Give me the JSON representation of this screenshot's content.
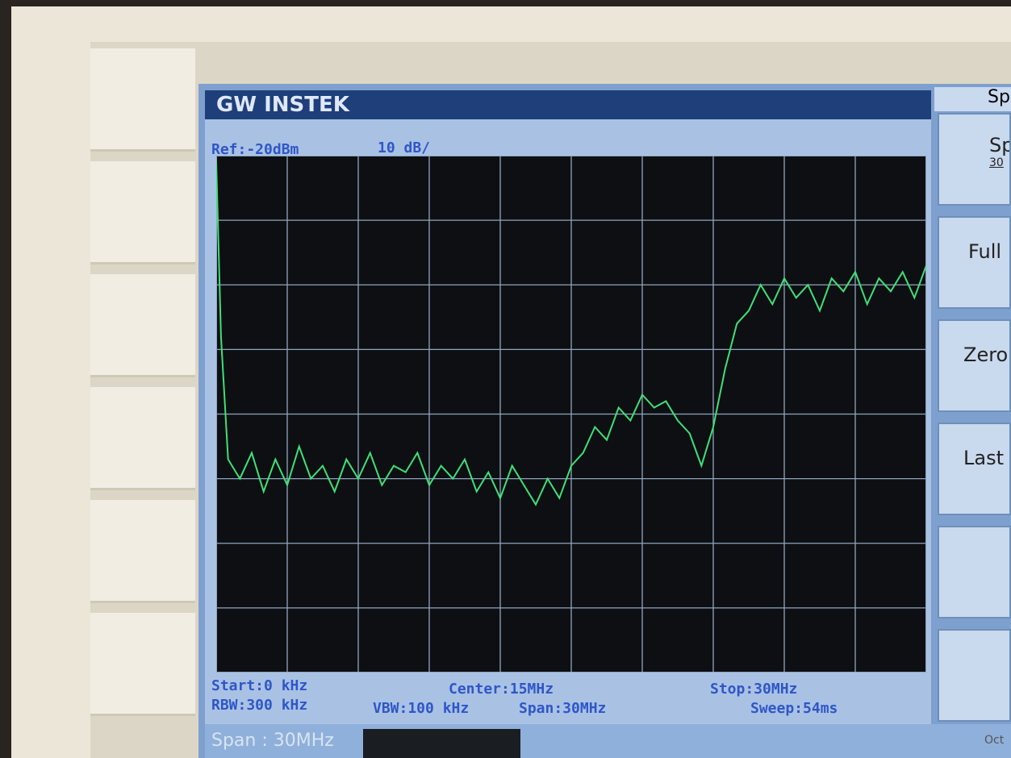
{
  "header": {
    "brand": "GW INSTEK",
    "ref": "Ref:-20dBm",
    "scale": "10 dB/"
  },
  "status": {
    "start": "Start:0 kHz",
    "rbw": "RBW:300 kHz",
    "center": "Center:15MHz",
    "vbw": "VBW:100 kHz",
    "span": "Span:30MHz",
    "stop": "Stop:30MHz",
    "sweep": "Sweep:54ms"
  },
  "softkeys": {
    "menu": "Sp",
    "items": [
      {
        "label": "Sp",
        "value": "30"
      },
      {
        "label": "Full"
      },
      {
        "label": "Zero"
      },
      {
        "label": "Last"
      }
    ]
  },
  "footer": {
    "input": "Span : 30MHz",
    "date": "Oct"
  },
  "chart_data": {
    "type": "line",
    "x": [
      0,
      0.2,
      0.5,
      1,
      1.5,
      2,
      2.5,
      3,
      3.5,
      4,
      4.5,
      5,
      5.5,
      6,
      6.5,
      7,
      7.5,
      8,
      8.5,
      9,
      9.5,
      10,
      10.5,
      11,
      11.5,
      12,
      12.5,
      13,
      13.5,
      14,
      14.5,
      15,
      15.5,
      16,
      16.5,
      17,
      17.5,
      18,
      18.5,
      19,
      19.5,
      20,
      20.5,
      21,
      21.5,
      22,
      22.5,
      23,
      23.5,
      24,
      24.5,
      25,
      25.5,
      26,
      26.5,
      27,
      27.5,
      28,
      28.5,
      29,
      29.5,
      30
    ],
    "values": [
      -21,
      -48,
      -67,
      -70,
      -66,
      -72,
      -67,
      -71,
      -65,
      -70,
      -68,
      -72,
      -67,
      -70,
      -66,
      -71,
      -68,
      -69,
      -66,
      -71,
      -68,
      -70,
      -67,
      -72,
      -69,
      -73,
      -68,
      -71,
      -74,
      -70,
      -73,
      -68,
      -66,
      -62,
      -64,
      -59,
      -61,
      -57,
      -59,
      -58,
      -61,
      -63,
      -68,
      -62,
      -53,
      -46,
      -44,
      -40,
      -43,
      -39,
      -42,
      -40,
      -44,
      -39,
      -41,
      -38,
      -43,
      -39,
      -41,
      -38,
      -42,
      -37
    ],
    "color": "#3ee07a",
    "xlim": [
      0,
      30
    ],
    "ylim": [
      -100,
      -20
    ],
    "xticks": [
      0,
      3,
      6,
      9,
      12,
      15,
      18,
      21,
      24,
      27,
      30
    ],
    "yticks": [
      -100,
      -90,
      -80,
      -70,
      -60,
      -50,
      -40,
      -30,
      -20
    ],
    "grid": true
  }
}
